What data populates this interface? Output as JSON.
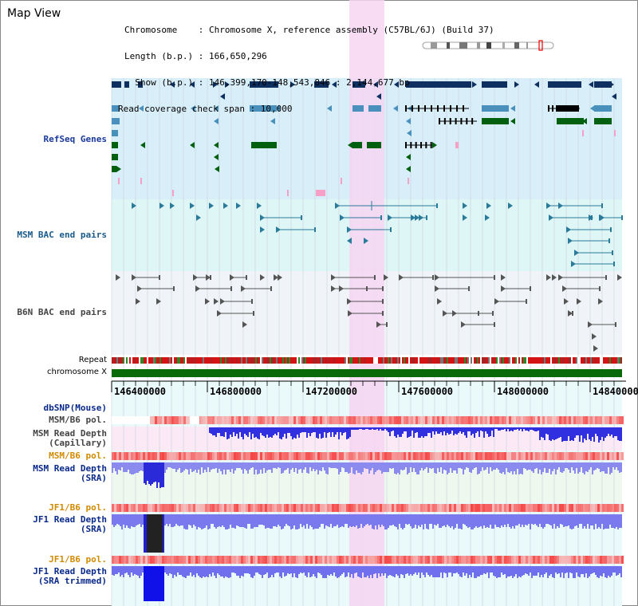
{
  "title": "Map View",
  "info": {
    "chromosome_line": "Chromosome    : Chromosome X, reference assembly (C57BL/6J) (Build 37)",
    "length_line": "Length (b.p.) : 166,650,296",
    "show_line": "  Show (b.p.) : 146,399,170-148,543,846 : 2,144,677 bp",
    "coverage_line": "Read coverage check span : 10,000"
  },
  "tracks": {
    "refseq": "RefSeq Genes",
    "msm_bac": "MSM BAC end pairs",
    "b6n_bac": "B6N BAC end pairs",
    "repeat": "Repeat",
    "chromosome": "chromosome X",
    "dbsnp": "dbSNP(Mouse)",
    "msm_b6_pol_1": "MSM/B6 pol.",
    "msm_depth_cap_1": "MSM Read Depth",
    "msm_depth_cap_2": "(Capillary)",
    "msm_b6_pol_2": "MSM/B6 pol.",
    "msm_depth_sra_1": "MSM Read Depth",
    "msm_depth_sra_2": "(SRA)",
    "jf1_b6_pol_1": "JF1/B6 pol.",
    "jf1_depth_sra_1": "JF1 Read Depth",
    "jf1_depth_sra_2": "(SRA)",
    "jf1_b6_pol_2": "JF1/B6 pol.",
    "jf1_depth_trim_1": "JF1 Read Depth",
    "jf1_depth_trim_2": "(SRA trimmed)"
  },
  "axis_ticks": [
    "146400000",
    "146800000",
    "147200000",
    "147600000",
    "148000000",
    "148400000"
  ],
  "colors": {
    "refseq_bg": "#d8eef8",
    "msm_bac_bg": "#dff6f6",
    "b6n_bac_bg": "#f0f4f8",
    "highlight": "#f6d6f2",
    "gene_dark": "#0d3060",
    "gene_mid": "#4a90bc",
    "gene_green": "#006010",
    "depth_blue": "#3838e8",
    "depth_light": "#8a8af0",
    "chrom_green": "#0a6a0a"
  }
}
